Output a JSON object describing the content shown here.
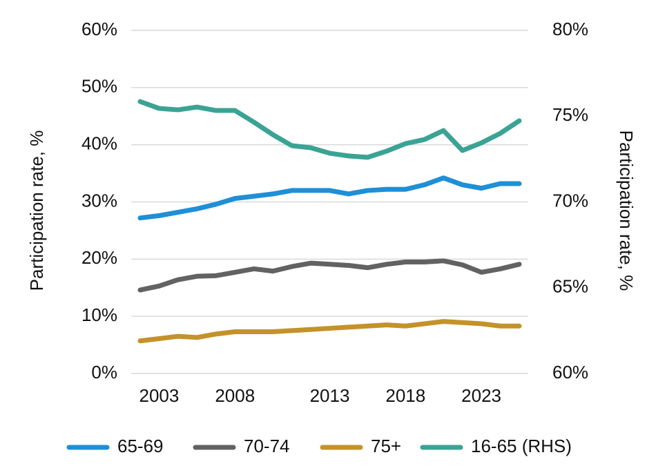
{
  "chart_data": {
    "type": "line",
    "y_label": "Participation rate, %",
    "y2_label": "Participation rate, %",
    "categories": [
      null,
      "2003",
      null,
      null,
      null,
      "2008",
      null,
      null,
      null,
      null,
      "2013",
      null,
      null,
      null,
      "2018",
      null,
      null,
      null,
      "2023",
      null,
      null
    ],
    "series": [
      {
        "name": "65-69",
        "color": "#1f8fd6",
        "values": [
          27.2,
          27.6,
          28.2,
          28.8,
          29.6,
          30.6,
          31,
          31.4,
          32,
          32,
          32,
          31.4,
          32,
          32.2,
          32.2,
          33,
          34.2,
          33,
          32.4,
          33.2,
          33.2
        ]
      },
      {
        "name": "70-74",
        "color": "#626262",
        "values": [
          14.6,
          15.3,
          16.4,
          17,
          17.1,
          17.7,
          18.3,
          17.9,
          18.7,
          19.3,
          19.1,
          18.9,
          18.5,
          19.1,
          19.5,
          19.5,
          19.7,
          19,
          17.7,
          18.3,
          19.1
        ]
      },
      {
        "name": "75+",
        "color": "#c4922a",
        "values": [
          5.7,
          6.1,
          6.5,
          6.3,
          6.9,
          7.3,
          7.3,
          7.3,
          7.5,
          7.7,
          7.9,
          8.1,
          8.3,
          8.5,
          8.3,
          8.7,
          9.1,
          8.9,
          8.7,
          8.3,
          8.3
        ]
      },
      {
        "name": "16-65 (RHS)",
        "color": "#3aa394",
        "axis": "y2",
        "values": [
          75.85,
          75.45,
          75.37,
          75.53,
          75.33,
          75.33,
          74.65,
          73.92,
          73.28,
          73.16,
          72.84,
          72.68,
          72.6,
          72.96,
          73.4,
          73.64,
          74.16,
          73,
          73.44,
          74,
          74.73
        ]
      }
    ],
    "ylim": [
      0,
      60
    ],
    "yticks": [
      {
        "value": 0,
        "label": "0%"
      },
      {
        "value": 10,
        "label": "10%"
      },
      {
        "value": 20,
        "label": "20%"
      },
      {
        "value": 30,
        "label": "30%"
      },
      {
        "value": 40,
        "label": "40%"
      },
      {
        "value": 50,
        "label": "50%"
      },
      {
        "value": 60,
        "label": "60%"
      }
    ],
    "y2lim": [
      60,
      80
    ],
    "y2ticks": [
      {
        "value": 60,
        "label": "60%"
      },
      {
        "value": 65,
        "label": "65%"
      },
      {
        "value": 70,
        "label": "70%"
      },
      {
        "value": 75,
        "label": "75%"
      },
      {
        "value": 80,
        "label": "80%"
      }
    ],
    "grid": true,
    "legend": "bottom"
  }
}
